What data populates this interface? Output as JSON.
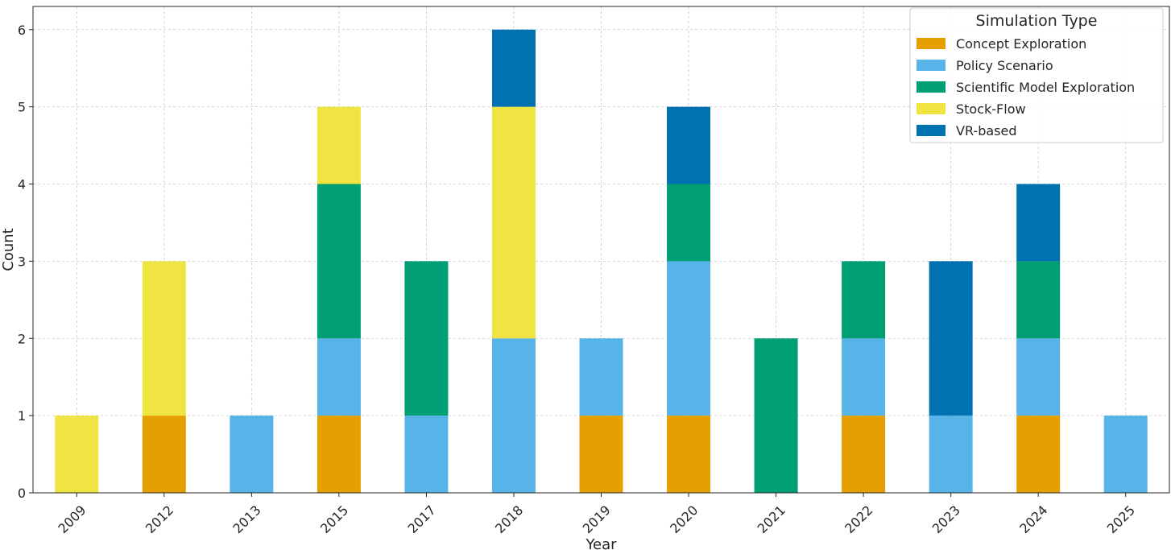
{
  "chart_data": {
    "type": "bar",
    "stacked": true,
    "title": "",
    "xlabel": "Year",
    "ylabel": "Count",
    "ylim": [
      0,
      6.3
    ],
    "yticks": [
      0,
      1,
      2,
      3,
      4,
      5,
      6
    ],
    "grid": true,
    "legend": {
      "title": "Simulation Type",
      "placement": "top-right"
    },
    "categories": [
      "2009",
      "2012",
      "2013",
      "2015",
      "2017",
      "2018",
      "2019",
      "2020",
      "2021",
      "2022",
      "2023",
      "2024",
      "2025"
    ],
    "series": [
      {
        "name": "Concept Exploration",
        "color": "#E69F00",
        "values": [
          0,
          1,
          0,
          1,
          0,
          0,
          1,
          1,
          0,
          1,
          0,
          1,
          0
        ]
      },
      {
        "name": "Policy Scenario",
        "color": "#56B4E9",
        "values": [
          0,
          0,
          1,
          1,
          1,
          2,
          1,
          2,
          0,
          1,
          1,
          1,
          1
        ]
      },
      {
        "name": "Scientific Model Exploration",
        "color": "#009E73",
        "values": [
          0,
          0,
          0,
          2,
          2,
          0,
          0,
          1,
          2,
          1,
          0,
          1,
          0
        ]
      },
      {
        "name": "Stock-Flow",
        "color": "#F0E442",
        "values": [
          1,
          2,
          0,
          1,
          0,
          3,
          0,
          0,
          0,
          0,
          0,
          0,
          0
        ]
      },
      {
        "name": "VR-based",
        "color": "#0072B2",
        "values": [
          0,
          0,
          0,
          0,
          0,
          1,
          0,
          1,
          0,
          0,
          2,
          1,
          0
        ]
      }
    ]
  }
}
